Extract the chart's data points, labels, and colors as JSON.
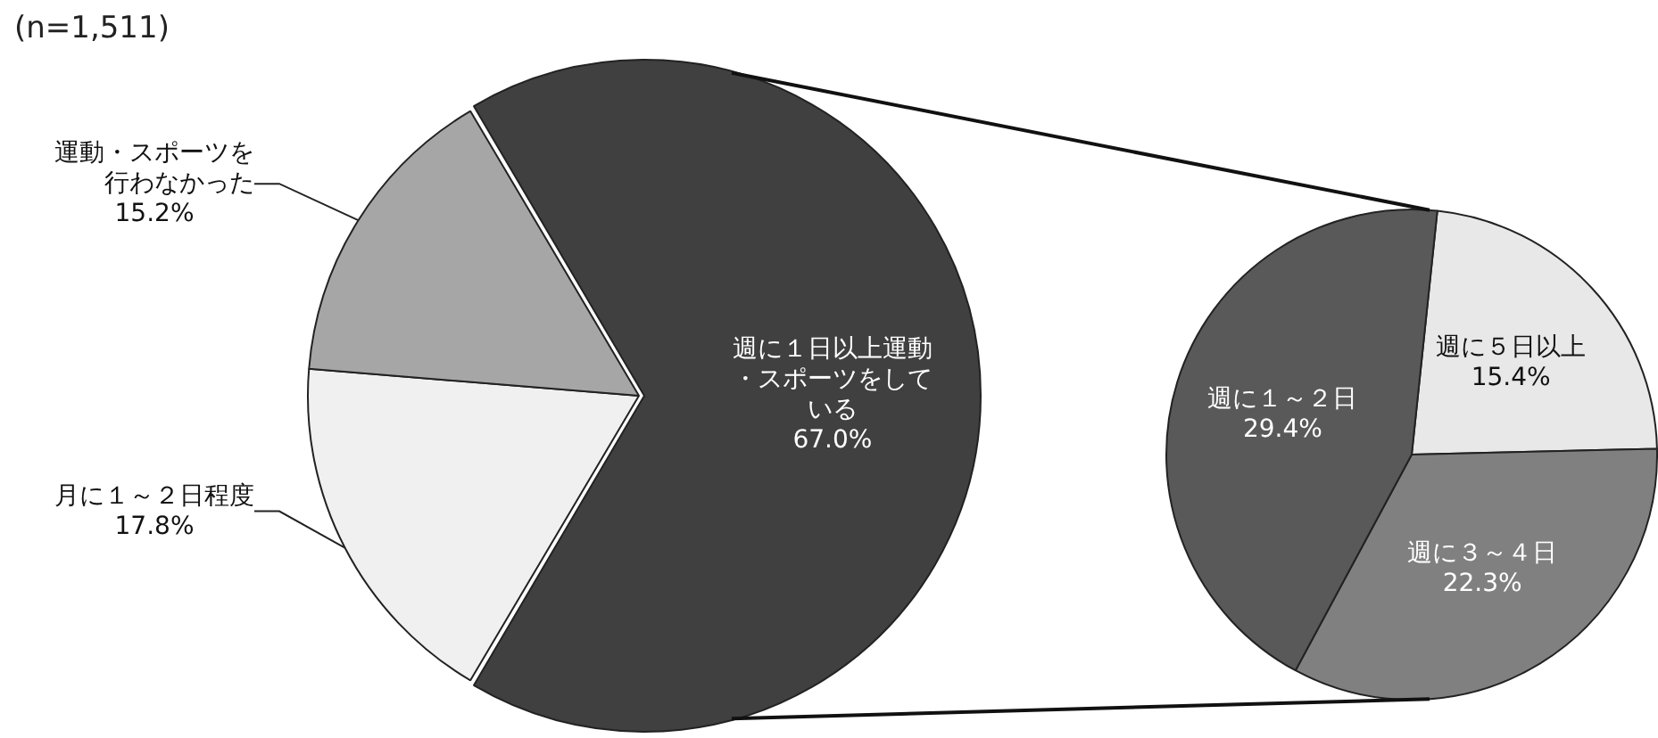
{
  "chart_data": [
    {
      "type": "pie",
      "title": "(n=1,511)",
      "categories": [
        "週に１日以上運動・スポーツをしている",
        "月に１～２日程度",
        "運動・スポーツを行わなかった"
      ],
      "values": [
        67.0,
        17.8,
        15.2
      ],
      "colors": [
        "#404040",
        "#f0f0f0",
        "#a6a6a6"
      ],
      "value_labels": [
        "67.0%",
        "17.8%",
        "15.2%"
      ]
    },
    {
      "type": "pie",
      "categories": [
        "週に５日以上",
        "週に３～４日",
        "週に１～２日"
      ],
      "values": [
        15.4,
        22.3,
        29.4
      ],
      "colors": [
        "#e8e8e8",
        "#808080",
        "#595959"
      ],
      "value_labels": [
        "15.4%",
        "22.3%",
        "29.4%"
      ]
    }
  ]
}
